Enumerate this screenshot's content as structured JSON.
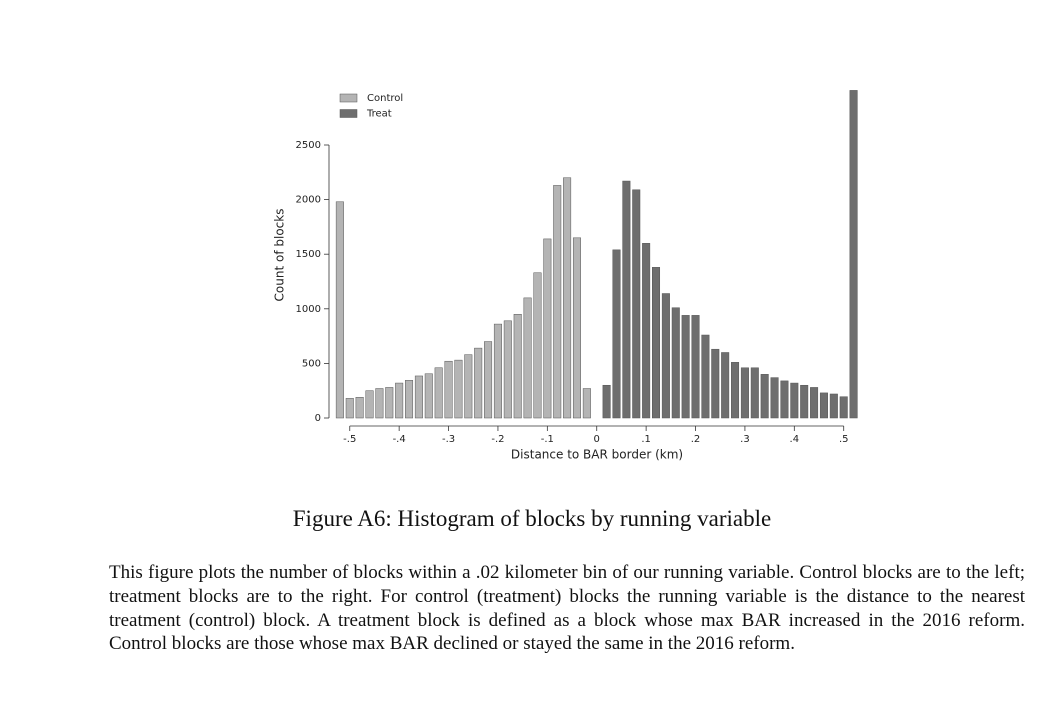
{
  "chart_data": {
    "type": "histogram",
    "x_label": "Distance to BAR border (km)",
    "y_label": "Count of blocks",
    "xlim": [
      -0.54,
      0.535
    ],
    "ylim": [
      0,
      3000
    ],
    "xticks": [
      {
        "value": -0.5,
        "label": "-.5"
      },
      {
        "value": -0.4,
        "label": "-.4"
      },
      {
        "value": -0.3,
        "label": "-.3"
      },
      {
        "value": -0.2,
        "label": "-.2"
      },
      {
        "value": -0.1,
        "label": "-.1"
      },
      0,
      {
        "value": 0.1,
        "label": ".1"
      },
      {
        "value": 0.2,
        "label": ".2"
      },
      {
        "value": 0.3,
        "label": ".3"
      },
      {
        "value": 0.4,
        "label": ".4"
      },
      {
        "value": 0.5,
        "label": ".5"
      }
    ],
    "yticks": [
      0,
      500,
      1000,
      1500,
      2000,
      2500
    ],
    "legend": "top-left",
    "series": [
      {
        "name": "Control",
        "color": "#b4b4b4",
        "bins": [
          -0.53,
          -0.51,
          -0.49,
          -0.47,
          -0.45,
          -0.43,
          -0.41,
          -0.39,
          -0.37,
          -0.35,
          -0.33,
          -0.31,
          -0.29,
          -0.27,
          -0.25,
          -0.23,
          -0.21,
          -0.19,
          -0.17,
          -0.15,
          -0.13,
          -0.11,
          -0.09,
          -0.07,
          -0.05,
          -0.03,
          -0.01
        ],
        "values": [
          1980,
          180,
          190,
          250,
          270,
          280,
          320,
          345,
          385,
          405,
          460,
          520,
          530,
          580,
          640,
          700,
          860,
          890,
          950,
          1100,
          1330,
          1640,
          2130,
          2200,
          1650,
          270
        ]
      },
      {
        "name": "Treat",
        "color": "#6e6e6e",
        "bins": [
          0.01,
          0.03,
          0.05,
          0.07,
          0.09,
          0.11,
          0.13,
          0.15,
          0.17,
          0.19,
          0.21,
          0.23,
          0.25,
          0.27,
          0.29,
          0.31,
          0.33,
          0.35,
          0.37,
          0.39,
          0.41,
          0.43,
          0.45,
          0.47,
          0.49,
          0.51,
          0.53
        ],
        "values": [
          300,
          1540,
          2170,
          2090,
          1600,
          1380,
          1140,
          1010,
          940,
          940,
          760,
          630,
          600,
          510,
          460,
          460,
          400,
          370,
          340,
          320,
          300,
          280,
          230,
          220,
          195,
          3000
        ]
      }
    ],
    "caption": "Figure A6: Histogram of blocks by running variable",
    "note": "This figure plots the number of blocks within a .02 kilometer bin of our running variable. Control blocks are to the left; treatment blocks are to the right. For control (treatment) blocks the running variable is the distance to the nearest treatment (control) block. A treatment block is defined as a block whose max BAR increased in the 2016 reform. Control blocks are those whose max BAR declined or stayed the same in the 2016 reform."
  }
}
